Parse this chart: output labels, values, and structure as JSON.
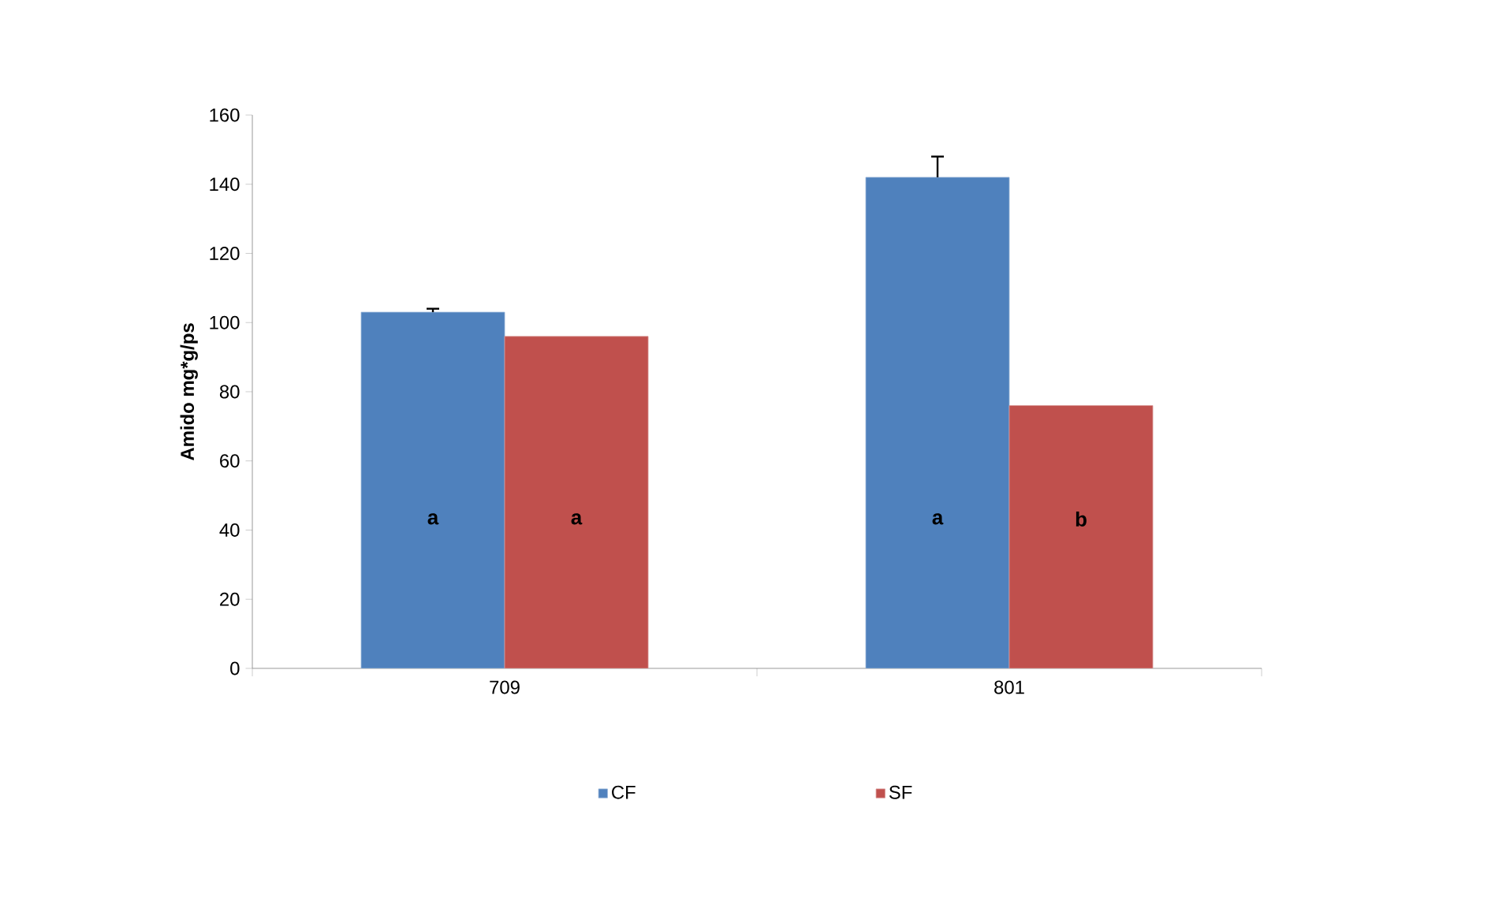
{
  "chart_data": {
    "type": "bar",
    "ylabel": "Amido mg*g/ps",
    "categories": [
      "709",
      "801"
    ],
    "series": [
      {
        "name": "CF",
        "color": "#4f81bd",
        "values": [
          103,
          142
        ],
        "errors": [
          [
            103,
            104
          ],
          [
            142,
            148
          ]
        ],
        "value_labels": [
          "a",
          "a"
        ]
      },
      {
        "name": "SF",
        "color": "#c0504d",
        "values": [
          96,
          76
        ],
        "value_labels": [
          "a",
          "b"
        ]
      }
    ],
    "ylim": [
      0,
      160
    ],
    "yticks": [
      0,
      20,
      40,
      60,
      80,
      100,
      120,
      140,
      160
    ],
    "grid": false,
    "legend": "bottom"
  }
}
